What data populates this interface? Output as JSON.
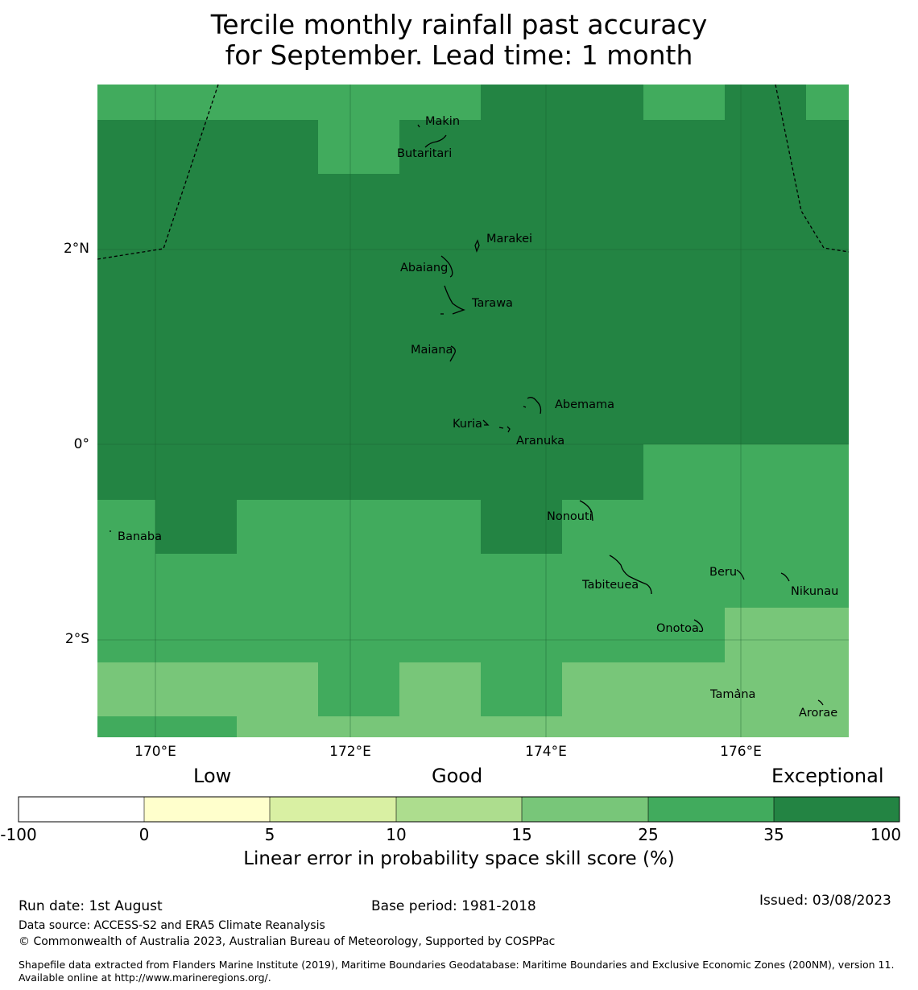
{
  "title_line1": "Tercile monthly rainfall past accuracy",
  "title_line2": "for September. Lead time: 1 month",
  "map": {
    "colors": {
      "exceptional": "#238443",
      "very_good": "#41ab5d",
      "good_high": "#78c679",
      "good_low": "#addd8e",
      "fair": "#d9f0a3",
      "low": "#ffffcc",
      "negative": "#ffffff",
      "gridline": "#1a5c2e",
      "boundary": "#000000"
    },
    "lat_labels": [
      "2°N",
      "0°",
      "2°S"
    ],
    "lon_labels": [
      "170°E",
      "172°E",
      "174°E",
      "176°E"
    ],
    "islands": [
      "Makin",
      "Butaritari",
      "Marakei",
      "Abaiang",
      "Tarawa",
      "Maiana",
      "Abemama",
      "Kuria",
      "Aranuka",
      "Nonouti",
      "Banaba",
      "Beru",
      "Tabiteuea",
      "Nikunau",
      "Onotoa",
      "Tamana",
      "Arorae"
    ]
  },
  "colorbar": {
    "category_words": [
      "Low",
      "Good",
      "Exceptional"
    ],
    "ticks": [
      "-100",
      "0",
      "5",
      "10",
      "15",
      "25",
      "35",
      "100"
    ],
    "label": "Linear error in probability space skill score (%)"
  },
  "footer": {
    "run_date": "Run date: 1st August",
    "base_period": "Base period: 1981-2018",
    "issued": "Issued: 03/08/2023",
    "data_source": "Data source: ACCESS-S2 and ERA5 Climate Reanalysis",
    "copyright": "© Commonwealth of Australia 2023, Australian Bureau of Meteorology, Supported by COSPPac",
    "shapefile": "Shapefile data extracted from Flanders Marine Institute (2019), Maritime Boundaries Geodatabase: Maritime Boundaries and Exclusive Economic Zones (200NM), version 11. Available online at http://www.marineregions.org/."
  }
}
